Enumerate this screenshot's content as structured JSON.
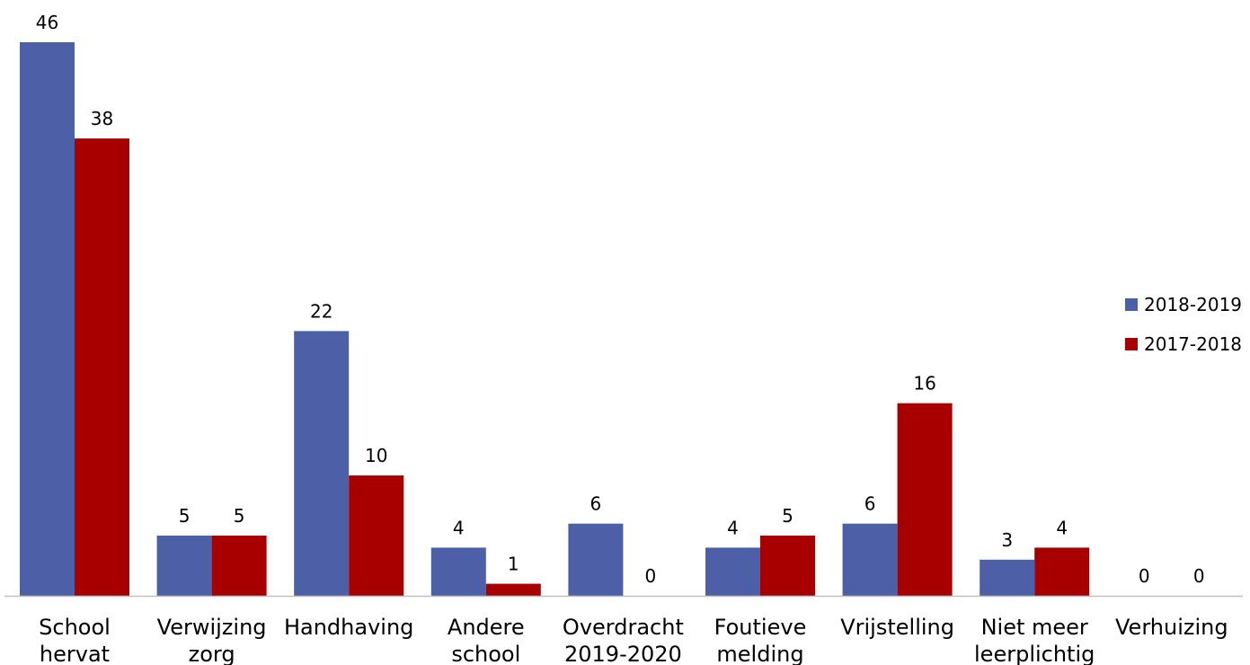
{
  "chart_data": {
    "type": "bar",
    "categories": [
      [
        "School",
        "hervat"
      ],
      [
        "Verwijzing",
        "zorg"
      ],
      [
        "Handhaving"
      ],
      [
        "Andere",
        "school"
      ],
      [
        "Overdracht",
        "2019-2020"
      ],
      [
        "Foutieve",
        "melding"
      ],
      [
        "Vrijstelling"
      ],
      [
        "Niet meer",
        "leerplichtig"
      ],
      [
        "Verhuizing"
      ]
    ],
    "series": [
      {
        "name": "2018-2019",
        "color": "#4d5fa7",
        "values": [
          46,
          5,
          22,
          4,
          6,
          4,
          6,
          3,
          0
        ]
      },
      {
        "name": "2017-2018",
        "color": "#a80000",
        "values": [
          38,
          5,
          10,
          1,
          0,
          5,
          16,
          4,
          0
        ]
      }
    ],
    "ylim": [
      0,
      46
    ],
    "grid": false,
    "legend_position": "right"
  }
}
